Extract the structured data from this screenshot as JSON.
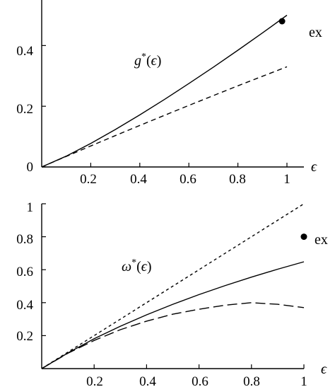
{
  "chart_data": [
    {
      "type": "line",
      "title": "",
      "xlabel": "ϵ",
      "ylabel": "",
      "xlim": [
        0,
        1
      ],
      "ylim": [
        0,
        0.55
      ],
      "x_ticks": [
        "0.2",
        "0.4",
        "0.6",
        "0.8",
        "1"
      ],
      "y_ticks": [
        "0",
        "0.2",
        "0.4"
      ],
      "annotation": {
        "base": "g",
        "star": "*",
        "open": "(",
        "arg": "ϵ",
        "close": ")"
      },
      "point_label": "ex",
      "point": {
        "x": 0.98,
        "y": 0.48
      },
      "series": [
        {
          "style": "solid",
          "x": [
            0,
            0.1,
            0.2,
            0.3,
            0.4,
            0.5,
            0.6,
            0.7,
            0.8,
            0.9,
            1.0
          ],
          "y": [
            0,
            0.0356,
            0.0775,
            0.1232,
            0.1716,
            0.2222,
            0.2747,
            0.3289,
            0.3845,
            0.4415,
            0.5
          ]
        },
        {
          "style": "dashed",
          "x": [
            0,
            0.1,
            0.2,
            0.3,
            0.4,
            0.5,
            0.6,
            0.7,
            0.8,
            0.9,
            1.0
          ],
          "y": [
            0,
            0.0348,
            0.0692,
            0.1032,
            0.1368,
            0.17,
            0.2028,
            0.2352,
            0.2672,
            0.2988,
            0.33
          ]
        }
      ]
    },
    {
      "type": "line",
      "title": "",
      "xlabel": "ϵ",
      "ylabel": "",
      "xlim": [
        0,
        1
      ],
      "ylim": [
        0,
        1
      ],
      "x_ticks": [
        "0.2",
        "0.4",
        "0.6",
        "0.8",
        "1"
      ],
      "y_ticks": [
        "0.2",
        "0.4",
        "0.6",
        "0.8",
        "1"
      ],
      "annotation": {
        "base": "ω",
        "star": "*",
        "open": "(",
        "arg": "ϵ",
        "close": ")"
      },
      "point_label": "ex",
      "point": {
        "x": 1.0,
        "y": 0.8
      },
      "series": [
        {
          "style": "short-dash",
          "x": [
            0,
            1
          ],
          "y": [
            0,
            1
          ]
        },
        {
          "style": "solid",
          "x": [
            0,
            0.1,
            0.2,
            0.3,
            0.4,
            0.5,
            0.6,
            0.7,
            0.8,
            0.9,
            1.0
          ],
          "y": [
            0,
            0.095,
            0.181,
            0.257,
            0.326,
            0.39,
            0.449,
            0.504,
            0.555,
            0.603,
            0.648
          ]
        },
        {
          "style": "long-dash",
          "x": [
            0,
            0.1,
            0.2,
            0.3,
            0.4,
            0.5,
            0.6,
            0.7,
            0.8,
            0.9,
            1.0
          ],
          "y": [
            0,
            0.093,
            0.171,
            0.236,
            0.288,
            0.33,
            0.36,
            0.385,
            0.4,
            0.39,
            0.37
          ]
        }
      ]
    }
  ]
}
